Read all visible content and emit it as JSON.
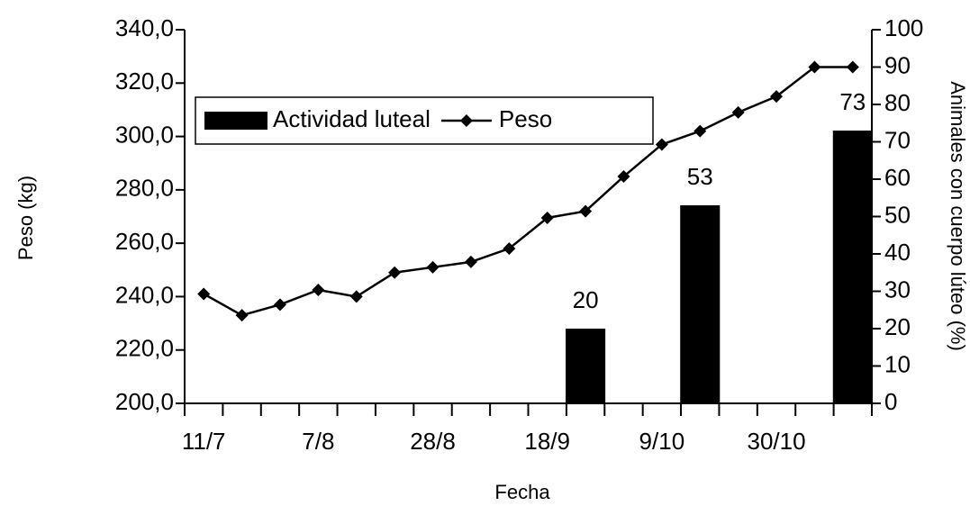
{
  "chart_data": {
    "type": "bar_line",
    "xlabel": "Fecha",
    "ylabel": "Peso (kg)",
    "y2label": "Animales con cuerpo lúteo (%)",
    "categories": [
      "11/7",
      null,
      null,
      "7/8",
      null,
      null,
      "28/8",
      null,
      null,
      "18/9",
      null,
      null,
      "9/10",
      null,
      null,
      "30/10",
      null,
      null
    ],
    "series": [
      {
        "name": "Actividad luteal",
        "type": "bar",
        "axis": "y2",
        "color": "#000000",
        "values": [
          null,
          null,
          null,
          null,
          null,
          null,
          null,
          null,
          null,
          null,
          20,
          null,
          null,
          53,
          null,
          null,
          null,
          73
        ]
      },
      {
        "name": "Peso",
        "type": "line",
        "color": "#000000",
        "values": [
          241,
          233,
          237,
          242.5,
          240,
          249,
          251,
          253,
          258,
          269.5,
          272,
          285,
          297,
          302,
          309,
          315,
          326,
          326
        ]
      }
    ],
    "ylim": [
      200,
      340
    ],
    "yticks": [
      {
        "value": 200,
        "label": "200,0"
      },
      {
        "value": 220,
        "label": "220,0"
      },
      {
        "value": 240,
        "label": "240,0"
      },
      {
        "value": 260,
        "label": "260,0"
      },
      {
        "value": 280,
        "label": "280,0"
      },
      {
        "value": 300,
        "label": "300,0"
      },
      {
        "value": 320,
        "label": "320,0"
      },
      {
        "value": 340,
        "label": "340,0"
      }
    ],
    "y2lim": [
      0,
      100
    ],
    "y2ticks": [
      0,
      10,
      20,
      30,
      40,
      50,
      60,
      70,
      80,
      90,
      100
    ],
    "legend": "upper left"
  }
}
